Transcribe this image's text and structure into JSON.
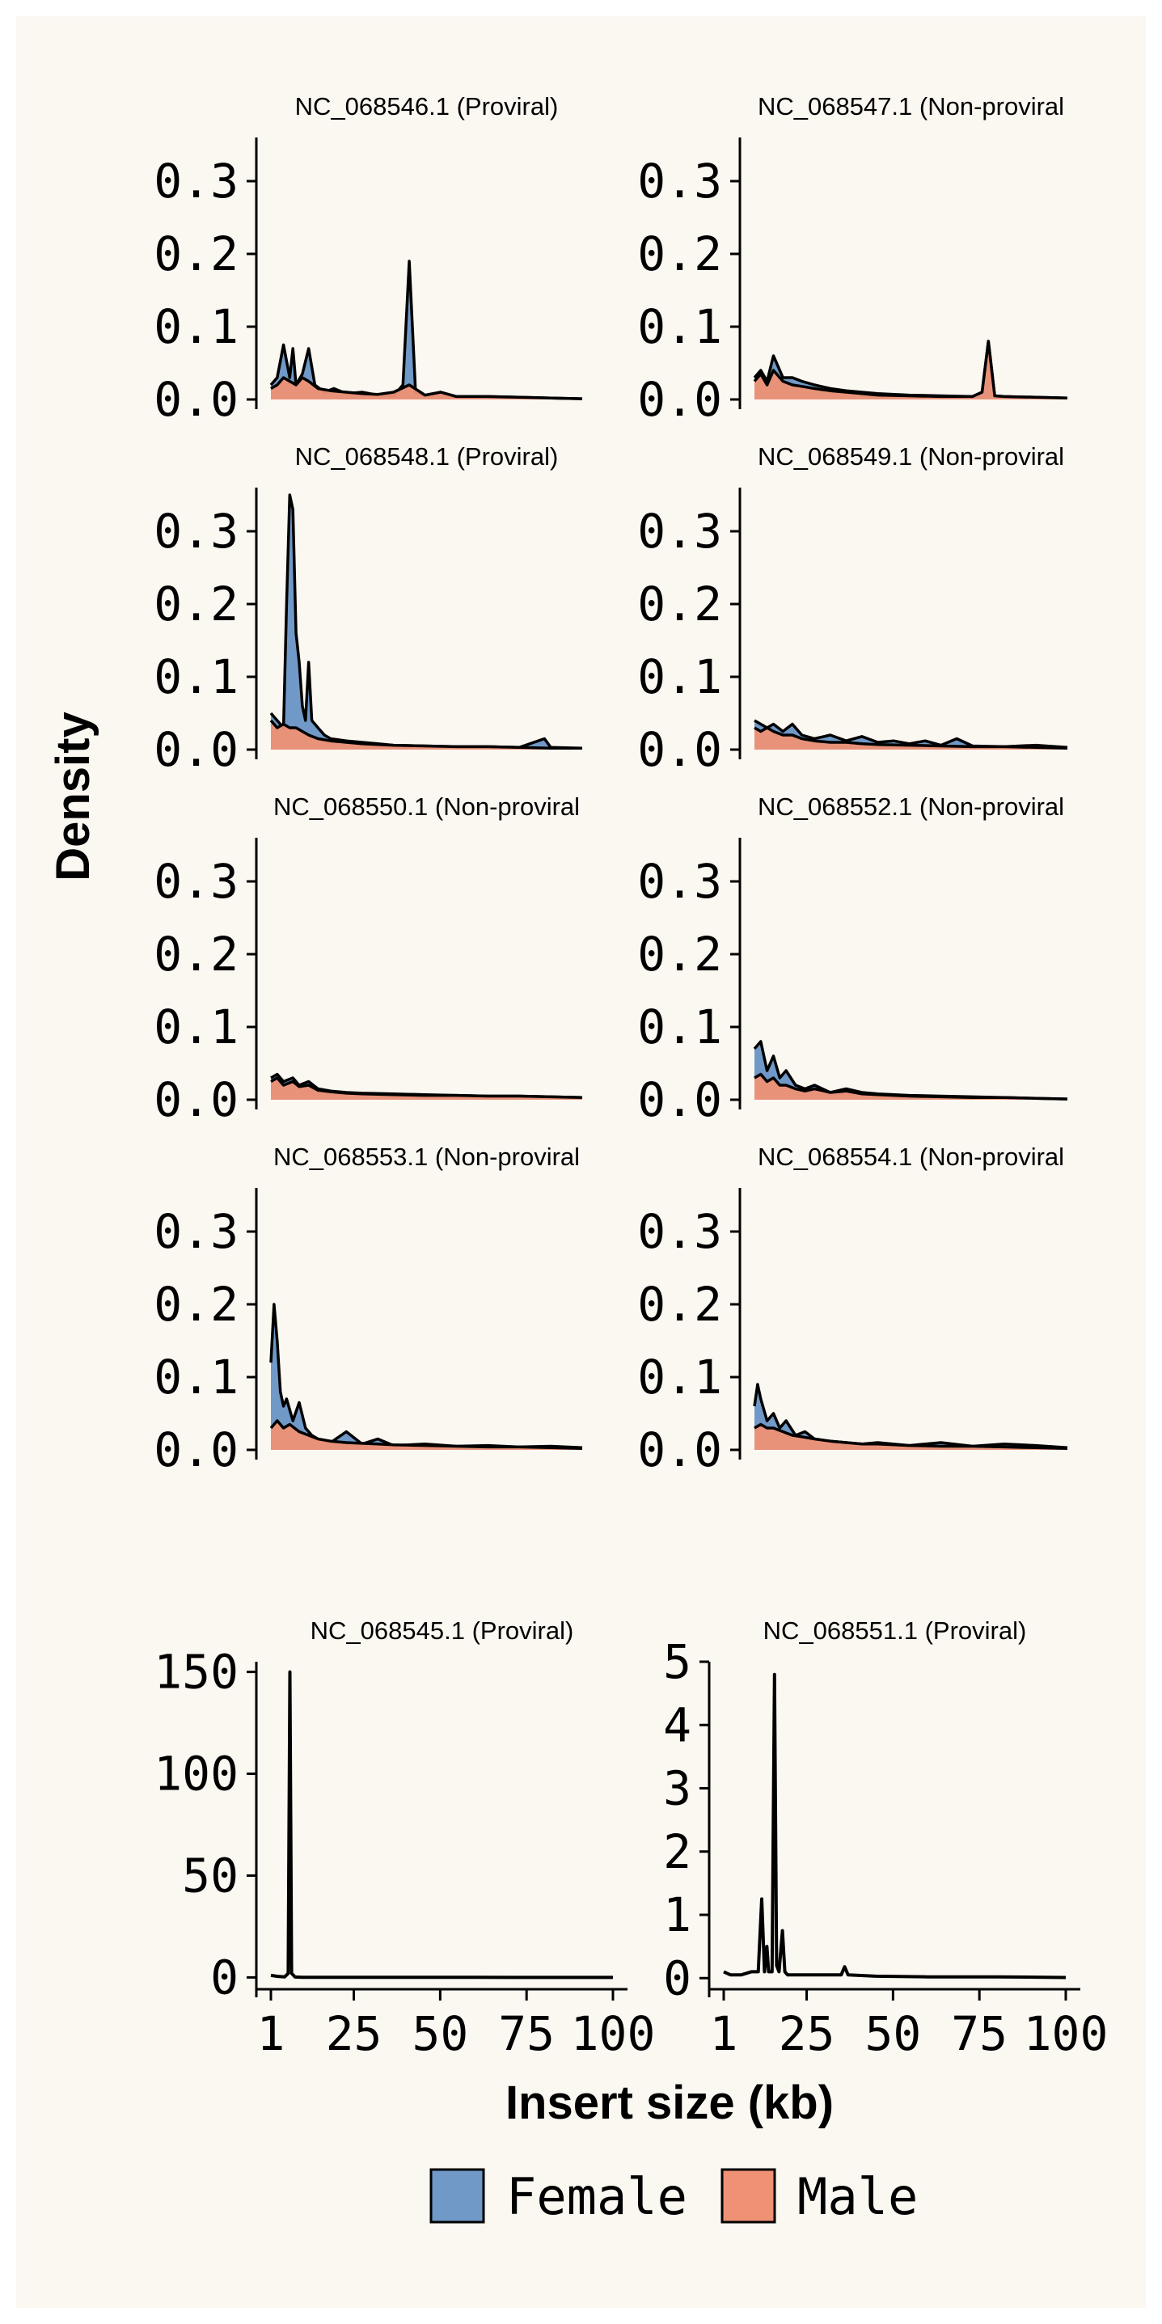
{
  "figure": {
    "ylabel": "Density",
    "xlabel": "Insert size (kb)",
    "legend": {
      "placement": "bottom-center",
      "items": [
        {
          "label": "Female",
          "color": "#7099C7"
        },
        {
          "label": "Male",
          "color": "#EE9175"
        }
      ]
    },
    "colors": {
      "background": "#FBF7F1",
      "female": "#7099C7",
      "male": "#EE9175",
      "line": "#000000"
    }
  },
  "chart_data": [
    {
      "type": "area",
      "title": "NC_068546.1 (Proviral)",
      "xlim": [
        1,
        100
      ],
      "ylim": [
        0,
        0.36
      ],
      "yticks": [
        "0.0",
        "0.1",
        "0.2",
        "0.3"
      ],
      "yticks_values": [
        0,
        0.1,
        0.2,
        0.3
      ],
      "series": [
        {
          "name": "Female",
          "x": [
            1,
            3,
            5,
            7,
            8,
            9,
            11,
            13,
            15,
            18,
            21,
            25,
            30,
            35,
            40,
            43,
            45,
            47,
            50,
            55,
            60,
            70,
            80,
            90,
            100
          ],
          "y": [
            0.02,
            0.03,
            0.075,
            0.03,
            0.07,
            0.02,
            0.035,
            0.07,
            0.02,
            0.01,
            0.015,
            0.008,
            0.01,
            0.006,
            0.005,
            0.02,
            0.19,
            0.01,
            0.005,
            0.01,
            0.004,
            0.004,
            0.003,
            0.002,
            0.001
          ]
        },
        {
          "name": "Male",
          "x": [
            1,
            3,
            5,
            7,
            9,
            11,
            13,
            16,
            20,
            25,
            30,
            35,
            40,
            45,
            50,
            55,
            60,
            70,
            80,
            90,
            100
          ],
          "y": [
            0.015,
            0.02,
            0.03,
            0.025,
            0.02,
            0.03,
            0.025,
            0.015,
            0.012,
            0.01,
            0.008,
            0.007,
            0.01,
            0.02,
            0.006,
            0.01,
            0.004,
            0.004,
            0.003,
            0.002,
            0.001
          ]
        }
      ]
    },
    {
      "type": "area",
      "title": "NC_068547.1 (Non-proviral",
      "xlim": [
        1,
        100
      ],
      "ylim": [
        0,
        0.36
      ],
      "yticks": [
        "0.0",
        "0.1",
        "0.2",
        "0.3"
      ],
      "yticks_values": [
        0,
        0.1,
        0.2,
        0.3
      ],
      "series": [
        {
          "name": "Female",
          "x": [
            1,
            3,
            5,
            7,
            10,
            13,
            16,
            20,
            25,
            30,
            35,
            40,
            50,
            60,
            70,
            73,
            75,
            77,
            80,
            90,
            100
          ],
          "y": [
            0.03,
            0.04,
            0.025,
            0.06,
            0.03,
            0.03,
            0.025,
            0.02,
            0.015,
            0.012,
            0.01,
            0.008,
            0.006,
            0.005,
            0.004,
            0.01,
            0.08,
            0.005,
            0.004,
            0.003,
            0.002
          ]
        },
        {
          "name": "Male",
          "x": [
            1,
            3,
            5,
            7,
            10,
            13,
            16,
            20,
            25,
            30,
            35,
            40,
            50,
            60,
            70,
            73,
            75,
            77,
            80,
            90,
            100
          ],
          "y": [
            0.025,
            0.035,
            0.02,
            0.04,
            0.025,
            0.02,
            0.018,
            0.015,
            0.012,
            0.01,
            0.008,
            0.006,
            0.005,
            0.004,
            0.004,
            0.01,
            0.08,
            0.005,
            0.004,
            0.003,
            0.002
          ]
        }
      ]
    },
    {
      "type": "area",
      "title": "NC_068548.1 (Proviral)",
      "xlim": [
        1,
        100
      ],
      "ylim": [
        0,
        0.36
      ],
      "yticks": [
        "0.0",
        "0.1",
        "0.2",
        "0.3"
      ],
      "yticks_values": [
        0,
        0.1,
        0.2,
        0.3
      ],
      "series": [
        {
          "name": "Female",
          "x": [
            1,
            3,
            5,
            6,
            7,
            8,
            9,
            10,
            11,
            12,
            13,
            14,
            16,
            18,
            20,
            25,
            30,
            35,
            40,
            50,
            60,
            70,
            80,
            88,
            90,
            100
          ],
          "y": [
            0.05,
            0.04,
            0.03,
            0.2,
            0.35,
            0.33,
            0.16,
            0.12,
            0.06,
            0.04,
            0.12,
            0.04,
            0.03,
            0.02,
            0.015,
            0.012,
            0.01,
            0.008,
            0.006,
            0.005,
            0.004,
            0.004,
            0.003,
            0.015,
            0.003,
            0.002
          ]
        },
        {
          "name": "Male",
          "x": [
            1,
            3,
            5,
            7,
            9,
            11,
            13,
            16,
            20,
            25,
            30,
            35,
            40,
            50,
            60,
            70,
            80,
            90,
            100
          ],
          "y": [
            0.04,
            0.03,
            0.035,
            0.03,
            0.03,
            0.025,
            0.02,
            0.015,
            0.012,
            0.01,
            0.008,
            0.007,
            0.006,
            0.005,
            0.004,
            0.004,
            0.003,
            0.002,
            0.002
          ]
        }
      ]
    },
    {
      "type": "area",
      "title": "NC_068549.1 (Non-proviral",
      "xlim": [
        1,
        100
      ],
      "ylim": [
        0,
        0.36
      ],
      "yticks": [
        "0.0",
        "0.1",
        "0.2",
        "0.3"
      ],
      "yticks_values": [
        0,
        0.1,
        0.2,
        0.3
      ],
      "series": [
        {
          "name": "Female",
          "x": [
            1,
            3,
            5,
            7,
            10,
            13,
            16,
            20,
            25,
            30,
            35,
            40,
            45,
            50,
            55,
            60,
            65,
            70,
            80,
            90,
            100
          ],
          "y": [
            0.04,
            0.035,
            0.03,
            0.035,
            0.025,
            0.035,
            0.02,
            0.015,
            0.02,
            0.012,
            0.018,
            0.01,
            0.012,
            0.008,
            0.012,
            0.006,
            0.015,
            0.005,
            0.004,
            0.006,
            0.003
          ]
        },
        {
          "name": "Male",
          "x": [
            1,
            3,
            5,
            7,
            10,
            13,
            16,
            20,
            25,
            30,
            35,
            40,
            50,
            60,
            70,
            80,
            90,
            100
          ],
          "y": [
            0.03,
            0.025,
            0.03,
            0.025,
            0.02,
            0.02,
            0.015,
            0.012,
            0.01,
            0.01,
            0.008,
            0.007,
            0.006,
            0.005,
            0.004,
            0.004,
            0.003,
            0.002
          ]
        }
      ]
    },
    {
      "type": "area",
      "title": "NC_068550.1 (Non-proviral",
      "xlim": [
        1,
        100
      ],
      "ylim": [
        0,
        0.36
      ],
      "yticks": [
        "0.0",
        "0.1",
        "0.2",
        "0.3"
      ],
      "yticks_values": [
        0,
        0.1,
        0.2,
        0.3
      ],
      "series": [
        {
          "name": "Female",
          "x": [
            1,
            3,
            5,
            8,
            10,
            13,
            16,
            20,
            25,
            30,
            40,
            50,
            60,
            70,
            80,
            90,
            100
          ],
          "y": [
            0.03,
            0.035,
            0.025,
            0.03,
            0.02,
            0.025,
            0.015,
            0.012,
            0.01,
            0.009,
            0.008,
            0.007,
            0.006,
            0.005,
            0.005,
            0.004,
            0.003
          ]
        },
        {
          "name": "Male",
          "x": [
            1,
            3,
            5,
            8,
            10,
            13,
            16,
            20,
            25,
            30,
            40,
            50,
            60,
            70,
            80,
            90,
            100
          ],
          "y": [
            0.025,
            0.03,
            0.02,
            0.025,
            0.018,
            0.02,
            0.013,
            0.011,
            0.009,
            0.008,
            0.007,
            0.006,
            0.006,
            0.005,
            0.005,
            0.004,
            0.003
          ]
        }
      ]
    },
    {
      "type": "area",
      "title": "NC_068552.1 (Non-proviral",
      "xlim": [
        1,
        100
      ],
      "ylim": [
        0,
        0.36
      ],
      "yticks": [
        "0.0",
        "0.1",
        "0.2",
        "0.3"
      ],
      "yticks_values": [
        0,
        0.1,
        0.2,
        0.3
      ],
      "series": [
        {
          "name": "Female",
          "x": [
            1,
            3,
            5,
            7,
            9,
            11,
            14,
            17,
            20,
            25,
            30,
            35,
            40,
            50,
            60,
            70,
            80,
            90,
            100
          ],
          "y": [
            0.07,
            0.08,
            0.04,
            0.06,
            0.03,
            0.04,
            0.02,
            0.015,
            0.02,
            0.01,
            0.015,
            0.01,
            0.008,
            0.006,
            0.005,
            0.004,
            0.003,
            0.002,
            0.001
          ]
        },
        {
          "name": "Male",
          "x": [
            1,
            3,
            5,
            7,
            9,
            11,
            14,
            17,
            20,
            25,
            30,
            35,
            40,
            50,
            60,
            70,
            80,
            90,
            100
          ],
          "y": [
            0.03,
            0.035,
            0.025,
            0.03,
            0.02,
            0.02,
            0.015,
            0.012,
            0.015,
            0.01,
            0.012,
            0.008,
            0.007,
            0.005,
            0.004,
            0.003,
            0.003,
            0.002,
            0.001
          ]
        }
      ]
    },
    {
      "type": "area",
      "title": "NC_068553.1 (Non-proviral",
      "xlim": [
        1,
        100
      ],
      "ylim": [
        0,
        0.36
      ],
      "yticks": [
        "0.0",
        "0.1",
        "0.2",
        "0.3"
      ],
      "yticks_values": [
        0,
        0.1,
        0.2,
        0.3
      ],
      "series": [
        {
          "name": "Female",
          "x": [
            1,
            2,
            3,
            4,
            5,
            6,
            8,
            10,
            12,
            14,
            16,
            20,
            25,
            30,
            35,
            40,
            50,
            60,
            70,
            80,
            90,
            100
          ],
          "y": [
            0.12,
            0.2,
            0.15,
            0.08,
            0.06,
            0.07,
            0.04,
            0.065,
            0.03,
            0.02,
            0.015,
            0.01,
            0.025,
            0.008,
            0.015,
            0.006,
            0.008,
            0.005,
            0.006,
            0.004,
            0.005,
            0.003
          ]
        },
        {
          "name": "Male",
          "x": [
            1,
            3,
            5,
            7,
            10,
            13,
            16,
            20,
            25,
            30,
            35,
            40,
            50,
            60,
            70,
            80,
            90,
            100
          ],
          "y": [
            0.03,
            0.04,
            0.03,
            0.035,
            0.025,
            0.02,
            0.015,
            0.012,
            0.01,
            0.009,
            0.008,
            0.007,
            0.006,
            0.005,
            0.004,
            0.004,
            0.003,
            0.002
          ]
        }
      ]
    },
    {
      "type": "area",
      "title": "NC_068554.1 (Non-proviral",
      "xlim": [
        1,
        100
      ],
      "ylim": [
        0,
        0.36
      ],
      "yticks": [
        "0.0",
        "0.1",
        "0.2",
        "0.3"
      ],
      "yticks_values": [
        0,
        0.1,
        0.2,
        0.3
      ],
      "series": [
        {
          "name": "Female",
          "x": [
            1,
            2,
            3,
            5,
            7,
            9,
            11,
            14,
            17,
            20,
            25,
            30,
            35,
            40,
            50,
            60,
            70,
            80,
            90,
            100
          ],
          "y": [
            0.06,
            0.09,
            0.07,
            0.04,
            0.05,
            0.03,
            0.04,
            0.02,
            0.025,
            0.015,
            0.012,
            0.01,
            0.008,
            0.01,
            0.006,
            0.01,
            0.005,
            0.008,
            0.006,
            0.003
          ]
        },
        {
          "name": "Male",
          "x": [
            1,
            3,
            5,
            7,
            10,
            13,
            16,
            20,
            25,
            30,
            35,
            40,
            50,
            60,
            70,
            80,
            90,
            100
          ],
          "y": [
            0.03,
            0.035,
            0.03,
            0.03,
            0.025,
            0.02,
            0.018,
            0.015,
            0.012,
            0.01,
            0.008,
            0.008,
            0.006,
            0.005,
            0.005,
            0.004,
            0.003,
            0.002
          ]
        }
      ]
    },
    {
      "type": "line",
      "title": "NC_068545.1 (Proviral)",
      "xlim": [
        1,
        100
      ],
      "ylim": [
        -5,
        155
      ],
      "yticks": [
        "0",
        "50",
        "100",
        "150"
      ],
      "yticks_values": [
        0,
        50,
        100,
        150
      ],
      "xticks": [
        "1",
        "25",
        "50",
        "75",
        "100"
      ],
      "xticks_values": [
        1,
        25,
        50,
        75,
        100
      ],
      "series": [
        {
          "name": "Female",
          "x": [
            1,
            3,
            5,
            6,
            6.5,
            7,
            8,
            10,
            20,
            40,
            60,
            80,
            100
          ],
          "y": [
            1,
            0.5,
            0.3,
            2,
            150,
            2,
            0.2,
            0.1,
            0.1,
            0.05,
            0.05,
            0.02,
            0.01
          ]
        }
      ]
    },
    {
      "type": "line",
      "title": "NC_068551.1 (Proviral)",
      "xlim": [
        1,
        100
      ],
      "ylim": [
        -0.15,
        5
      ],
      "yticks": [
        "0",
        "1",
        "2",
        "3",
        "4",
        "5"
      ],
      "yticks_values": [
        0,
        1,
        2,
        3,
        4,
        5
      ],
      "xticks": [
        "1",
        "25",
        "50",
        "75",
        "100"
      ],
      "xticks_values": [
        1,
        25,
        50,
        75,
        100
      ],
      "series": [
        {
          "name": "Female",
          "x": [
            1,
            3,
            6,
            9,
            11,
            12,
            12.8,
            13.5,
            14,
            15,
            15.7,
            16.3,
            17,
            18,
            18.7,
            19.5,
            21,
            25,
            30,
            35,
            36,
            37,
            45,
            60,
            80,
            100
          ],
          "y": [
            0.1,
            0.05,
            0.05,
            0.1,
            0.1,
            1.25,
            0.1,
            0.5,
            0.1,
            0.1,
            4.8,
            0.2,
            0.1,
            0.75,
            0.1,
            0.05,
            0.05,
            0.05,
            0.05,
            0.05,
            0.18,
            0.05,
            0.03,
            0.02,
            0.02,
            0.01
          ]
        }
      ]
    }
  ]
}
